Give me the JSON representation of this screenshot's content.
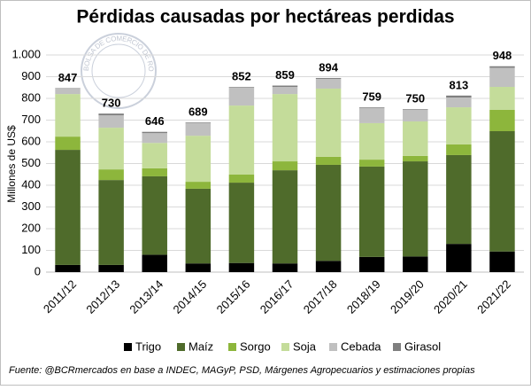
{
  "chart_data": {
    "type": "stacked_bar",
    "title": "Pérdidas causadas por hectáreas perdidas",
    "y_label": "Millones de US$",
    "source": "Fuente: @BCRmercados en base a INDEC, MAGyP, PSD, Márgenes Agropecuarios y estimaciones propias",
    "watermark": "BOLSA DE COMERCIO DE ROSARIO",
    "categories": [
      "2011/12",
      "2012/13",
      "2013/14",
      "2014/15",
      "2015/16",
      "2016/17",
      "2017/18",
      "2018/19",
      "2019/20",
      "2020/21",
      "2021/22"
    ],
    "series": [
      {
        "name": "Trigo",
        "color": "#000000",
        "values": [
          33,
          33,
          80,
          40,
          42,
          40,
          52,
          70,
          72,
          130,
          95
        ]
      },
      {
        "name": "Maíz",
        "color": "#4f6b2b",
        "values": [
          530,
          391,
          361,
          344,
          370,
          429,
          442,
          416,
          438,
          409,
          554
        ]
      },
      {
        "name": "Sorgo",
        "color": "#8db63c",
        "values": [
          61,
          49,
          37,
          32,
          37,
          41,
          37,
          32,
          25,
          49,
          98
        ]
      },
      {
        "name": "Soja",
        "color": "#c4dc9a",
        "values": [
          196,
          192,
          117,
          212,
          318,
          310,
          314,
          168,
          159,
          171,
          106
        ]
      },
      {
        "name": "Cebada",
        "color": "#c0c0c0",
        "values": [
          25,
          57,
          45,
          58,
          82,
          33,
          45,
          70,
          53,
          45,
          88
        ]
      },
      {
        "name": "Girasol",
        "color": "#7f7f7f",
        "values": [
          2,
          8,
          6,
          3,
          3,
          6,
          4,
          3,
          3,
          9,
          7
        ]
      }
    ],
    "totals": [
      847,
      730,
      646,
      689,
      852,
      859,
      894,
      759,
      750,
      813,
      948
    ],
    "ylim": [
      0,
      1000
    ],
    "yticks": [
      0,
      100,
      200,
      300,
      400,
      500,
      600,
      700,
      800,
      900,
      {
        "value": 1000,
        "label": "1.000"
      }
    ],
    "grid": true
  }
}
